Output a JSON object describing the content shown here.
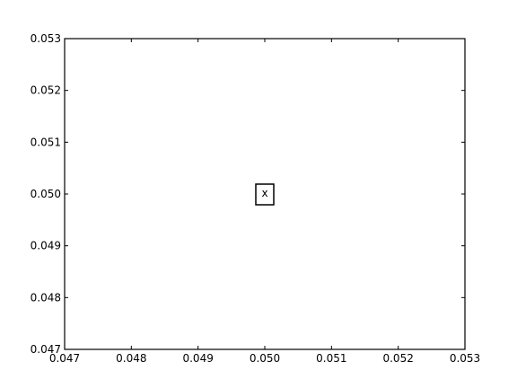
{
  "chart_data": {
    "type": "scatter",
    "title": "",
    "xlabel": "",
    "ylabel": "",
    "xlim": [
      0.047,
      0.053
    ],
    "ylim": [
      0.047,
      0.053
    ],
    "grid": false,
    "x_ticks": [
      "0.047",
      "0.048",
      "0.049",
      "0.050",
      "0.051",
      "0.052",
      "0.053"
    ],
    "y_ticks": [
      "0.047",
      "0.048",
      "0.049",
      "0.050",
      "0.051",
      "0.052",
      "0.053"
    ],
    "annotations": [
      {
        "text": "x",
        "x": 0.05,
        "y": 0.05,
        "boxed": true
      }
    ]
  }
}
